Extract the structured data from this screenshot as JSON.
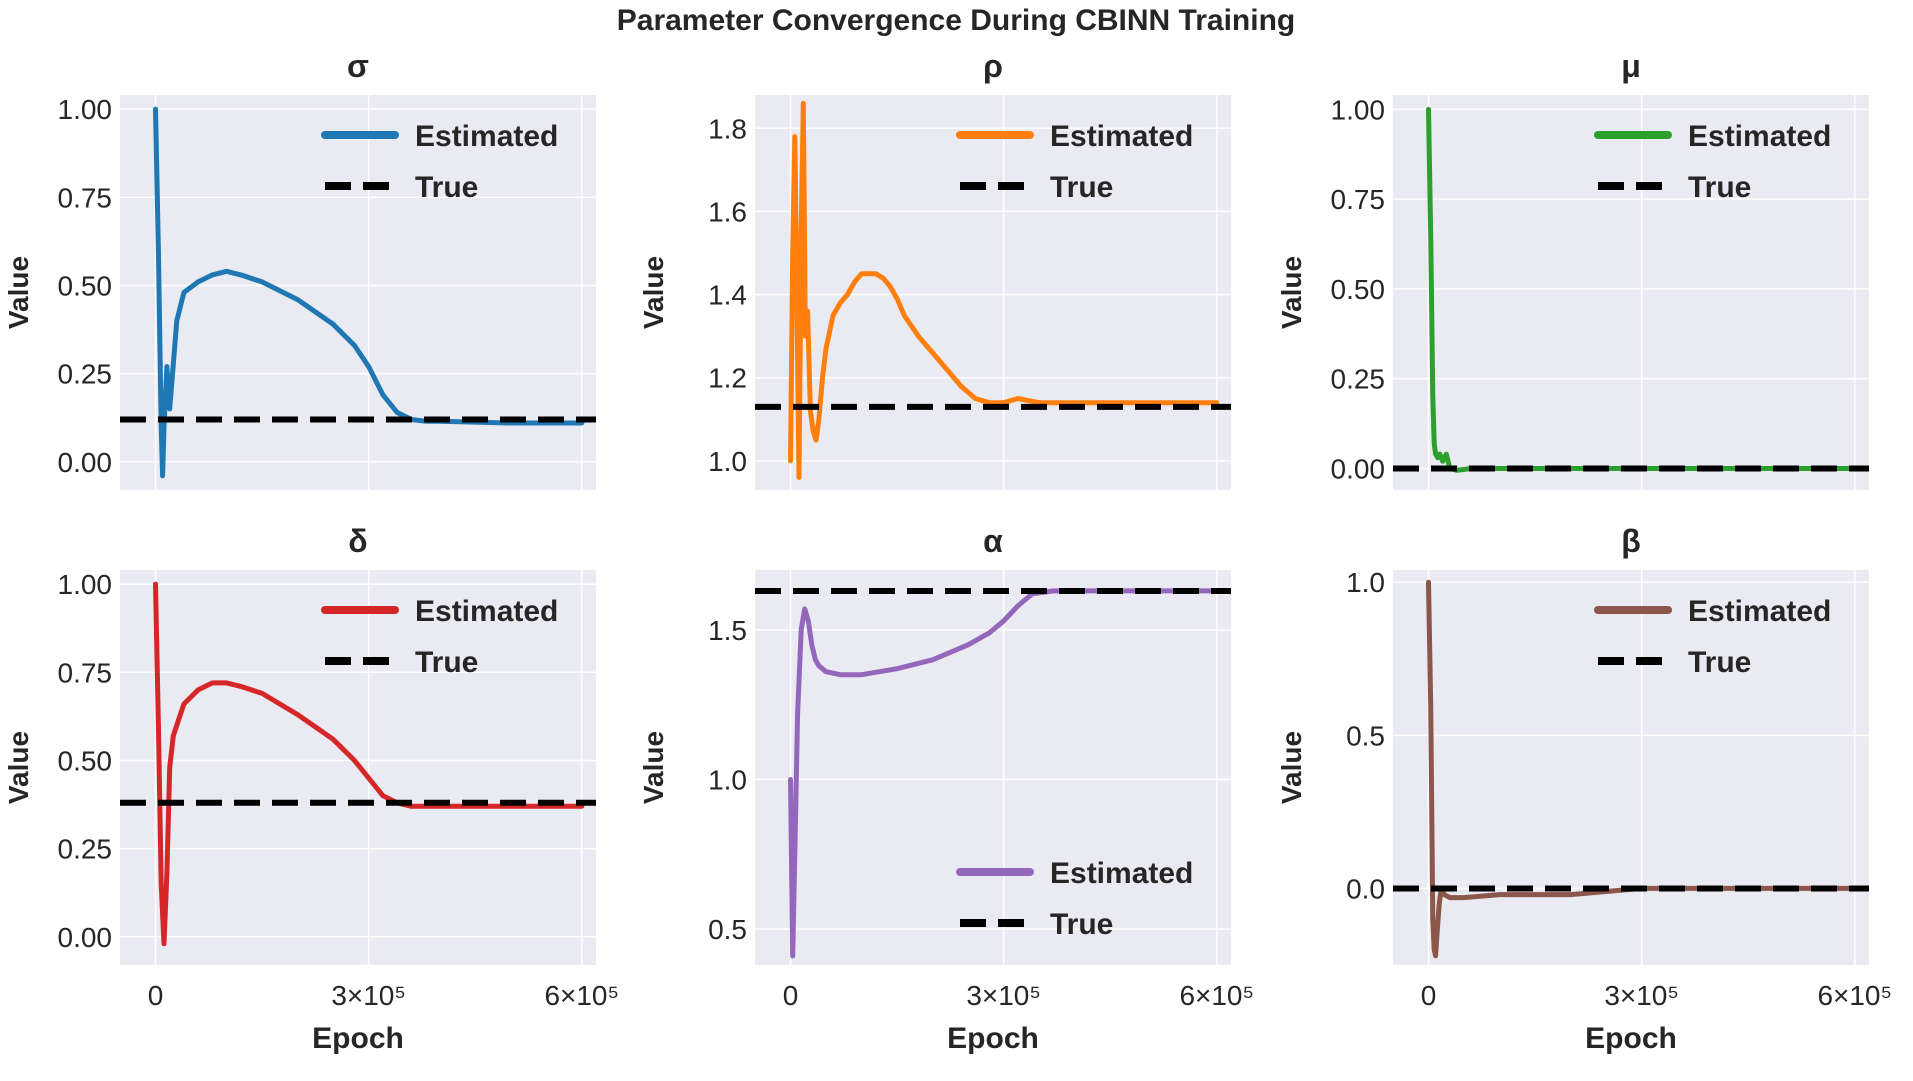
{
  "figure": {
    "title": "Parameter Convergence During CBINN Training",
    "xlabel": "Epoch",
    "ylabel": "Value"
  },
  "colors": {
    "background": "#ffffff",
    "panel": "#eaeaf2",
    "grid": "#ffffff",
    "true_line": "#000000",
    "text": "#262626"
  },
  "chart_data": [
    {
      "type": "line",
      "title": "σ",
      "xlabel": "",
      "ylabel": "Value",
      "xlim": [
        -50000,
        620000
      ],
      "ylim": [
        -0.08,
        1.04
      ],
      "yticks": [
        0.0,
        0.25,
        0.5,
        0.75,
        1.0
      ],
      "ytick_labels": [
        "0.00",
        "0.25",
        "0.50",
        "0.75",
        "1.00"
      ],
      "xticks": [],
      "xtick_labels": [],
      "legend": {
        "position": "top-right",
        "entries": [
          "Estimated",
          "True"
        ]
      },
      "true_value": 0.12,
      "series": [
        {
          "name": "Estimated",
          "color": "#1f77b4",
          "x": [
            0,
            4000,
            8000,
            10000,
            12000,
            16000,
            20000,
            30000,
            40000,
            60000,
            80000,
            100000,
            120000,
            150000,
            200000,
            250000,
            280000,
            300000,
            320000,
            340000,
            360000,
            380000,
            400000,
            500000,
            600000
          ],
          "y": [
            1.0,
            0.6,
            0.1,
            -0.04,
            0.1,
            0.27,
            0.15,
            0.4,
            0.48,
            0.51,
            0.53,
            0.54,
            0.53,
            0.51,
            0.46,
            0.39,
            0.33,
            0.27,
            0.19,
            0.14,
            0.12,
            0.115,
            0.115,
            0.11,
            0.11
          ]
        }
      ]
    },
    {
      "type": "line",
      "title": "ρ",
      "xlabel": "",
      "ylabel": "Value",
      "xlim": [
        -50000,
        620000
      ],
      "ylim": [
        0.93,
        1.88
      ],
      "yticks": [
        1.0,
        1.2,
        1.4,
        1.6,
        1.8
      ],
      "ytick_labels": [
        "1.0",
        "1.2",
        "1.4",
        "1.6",
        "1.8"
      ],
      "xticks": [],
      "xtick_labels": [],
      "legend": {
        "position": "top-right",
        "entries": [
          "Estimated",
          "True"
        ]
      },
      "true_value": 1.13,
      "series": [
        {
          "name": "Estimated",
          "color": "#ff7f0e",
          "x": [
            0,
            3000,
            6000,
            9000,
            12000,
            15000,
            18000,
            21000,
            24000,
            28000,
            32000,
            36000,
            40000,
            45000,
            50000,
            60000,
            70000,
            80000,
            90000,
            100000,
            110000,
            120000,
            130000,
            140000,
            150000,
            160000,
            180000,
            200000,
            220000,
            240000,
            260000,
            280000,
            290000,
            300000,
            320000,
            350000,
            400000,
            500000,
            580000,
            600000
          ],
          "y": [
            1.0,
            1.5,
            1.78,
            1.4,
            0.96,
            1.55,
            1.86,
            1.3,
            1.36,
            1.12,
            1.07,
            1.05,
            1.1,
            1.2,
            1.27,
            1.35,
            1.38,
            1.4,
            1.43,
            1.45,
            1.45,
            1.45,
            1.44,
            1.42,
            1.39,
            1.35,
            1.3,
            1.26,
            1.22,
            1.18,
            1.15,
            1.14,
            1.14,
            1.14,
            1.15,
            1.14,
            1.14,
            1.14,
            1.14,
            1.14
          ]
        }
      ]
    },
    {
      "type": "line",
      "title": "μ",
      "xlabel": "",
      "ylabel": "Value",
      "xlim": [
        -50000,
        620000
      ],
      "ylim": [
        -0.06,
        1.04
      ],
      "yticks": [
        0.0,
        0.25,
        0.5,
        0.75,
        1.0
      ],
      "ytick_labels": [
        "0.00",
        "0.25",
        "0.50",
        "0.75",
        "1.00"
      ],
      "xticks": [],
      "xtick_labels": [],
      "legend": {
        "position": "top-right",
        "entries": [
          "Estimated",
          "True"
        ]
      },
      "true_value": 0.0,
      "series": [
        {
          "name": "Estimated",
          "color": "#2ca02c",
          "x": [
            0,
            3000,
            6000,
            8000,
            10000,
            13000,
            16000,
            20000,
            25000,
            30000,
            40000,
            60000,
            100000,
            200000,
            300000,
            400000,
            500000,
            600000
          ],
          "y": [
            1.0,
            0.65,
            0.2,
            0.07,
            0.04,
            0.03,
            0.04,
            0.02,
            0.04,
            0.0,
            -0.005,
            0.0,
            0.0,
            0.0,
            0.0,
            0.0,
            0.0,
            0.0
          ]
        }
      ]
    },
    {
      "type": "line",
      "title": "δ",
      "xlabel": "Epoch",
      "ylabel": "Value",
      "xlim": [
        -50000,
        620000
      ],
      "ylim": [
        -0.08,
        1.04
      ],
      "yticks": [
        0.0,
        0.25,
        0.5,
        0.75,
        1.0
      ],
      "ytick_labels": [
        "0.00",
        "0.25",
        "0.50",
        "0.75",
        "1.00"
      ],
      "xticks": [
        0,
        300000,
        600000
      ],
      "xtick_labels": [
        "0",
        "3×10⁵",
        "6×10⁵"
      ],
      "legend": {
        "position": "top-right",
        "entries": [
          "Estimated",
          "True"
        ]
      },
      "true_value": 0.38,
      "series": [
        {
          "name": "Estimated",
          "color": "#d62728",
          "x": [
            0,
            4000,
            8000,
            12000,
            16000,
            20000,
            25000,
            30000,
            40000,
            60000,
            80000,
            100000,
            120000,
            150000,
            200000,
            250000,
            280000,
            300000,
            320000,
            340000,
            360000,
            380000,
            400000,
            500000,
            600000
          ],
          "y": [
            1.0,
            0.6,
            0.15,
            -0.02,
            0.18,
            0.48,
            0.57,
            0.6,
            0.66,
            0.7,
            0.72,
            0.72,
            0.71,
            0.69,
            0.63,
            0.56,
            0.5,
            0.45,
            0.4,
            0.38,
            0.37,
            0.37,
            0.37,
            0.37,
            0.37
          ]
        }
      ]
    },
    {
      "type": "line",
      "title": "α",
      "xlabel": "Epoch",
      "ylabel": "Value",
      "xlim": [
        -50000,
        620000
      ],
      "ylim": [
        0.38,
        1.7
      ],
      "yticks": [
        0.5,
        1.0,
        1.5
      ],
      "ytick_labels": [
        "0.5",
        "1.0",
        "1.5"
      ],
      "xticks": [
        0,
        300000,
        600000
      ],
      "xtick_labels": [
        "0",
        "3×10⁵",
        "6×10⁵"
      ],
      "legend": {
        "position": "bottom-right",
        "entries": [
          "Estimated",
          "True"
        ]
      },
      "true_value": 1.63,
      "series": [
        {
          "name": "Estimated",
          "color": "#9467bd",
          "x": [
            0,
            3000,
            6000,
            10000,
            15000,
            20000,
            25000,
            30000,
            35000,
            40000,
            50000,
            70000,
            100000,
            150000,
            200000,
            250000,
            280000,
            300000,
            320000,
            340000,
            370000,
            400000,
            500000,
            600000
          ],
          "y": [
            1.0,
            0.41,
            0.75,
            1.22,
            1.5,
            1.57,
            1.53,
            1.45,
            1.4,
            1.38,
            1.36,
            1.35,
            1.35,
            1.37,
            1.4,
            1.45,
            1.49,
            1.53,
            1.58,
            1.62,
            1.63,
            1.63,
            1.63,
            1.63
          ]
        }
      ]
    },
    {
      "type": "line",
      "title": "β",
      "xlabel": "Epoch",
      "ylabel": "Value",
      "xlim": [
        -50000,
        620000
      ],
      "ylim": [
        -0.25,
        1.04
      ],
      "yticks": [
        0.0,
        0.5,
        1.0
      ],
      "ytick_labels": [
        "0.0",
        "0.5",
        "1.0"
      ],
      "xticks": [
        0,
        300000,
        600000
      ],
      "xtick_labels": [
        "0",
        "3×10⁵",
        "6×10⁵"
      ],
      "legend": {
        "position": "top-right",
        "entries": [
          "Estimated",
          "True"
        ]
      },
      "true_value": 0.0,
      "series": [
        {
          "name": "Estimated",
          "color": "#8c564b",
          "x": [
            0,
            3000,
            6000,
            8000,
            10000,
            12000,
            15000,
            18000,
            22000,
            30000,
            50000,
            100000,
            200000,
            300000,
            400000,
            500000,
            600000
          ],
          "y": [
            1.0,
            0.6,
            -0.1,
            -0.2,
            -0.22,
            -0.15,
            -0.05,
            0.0,
            -0.02,
            -0.03,
            -0.03,
            -0.02,
            -0.02,
            0.0,
            0.0,
            0.0,
            0.0
          ]
        }
      ]
    }
  ]
}
